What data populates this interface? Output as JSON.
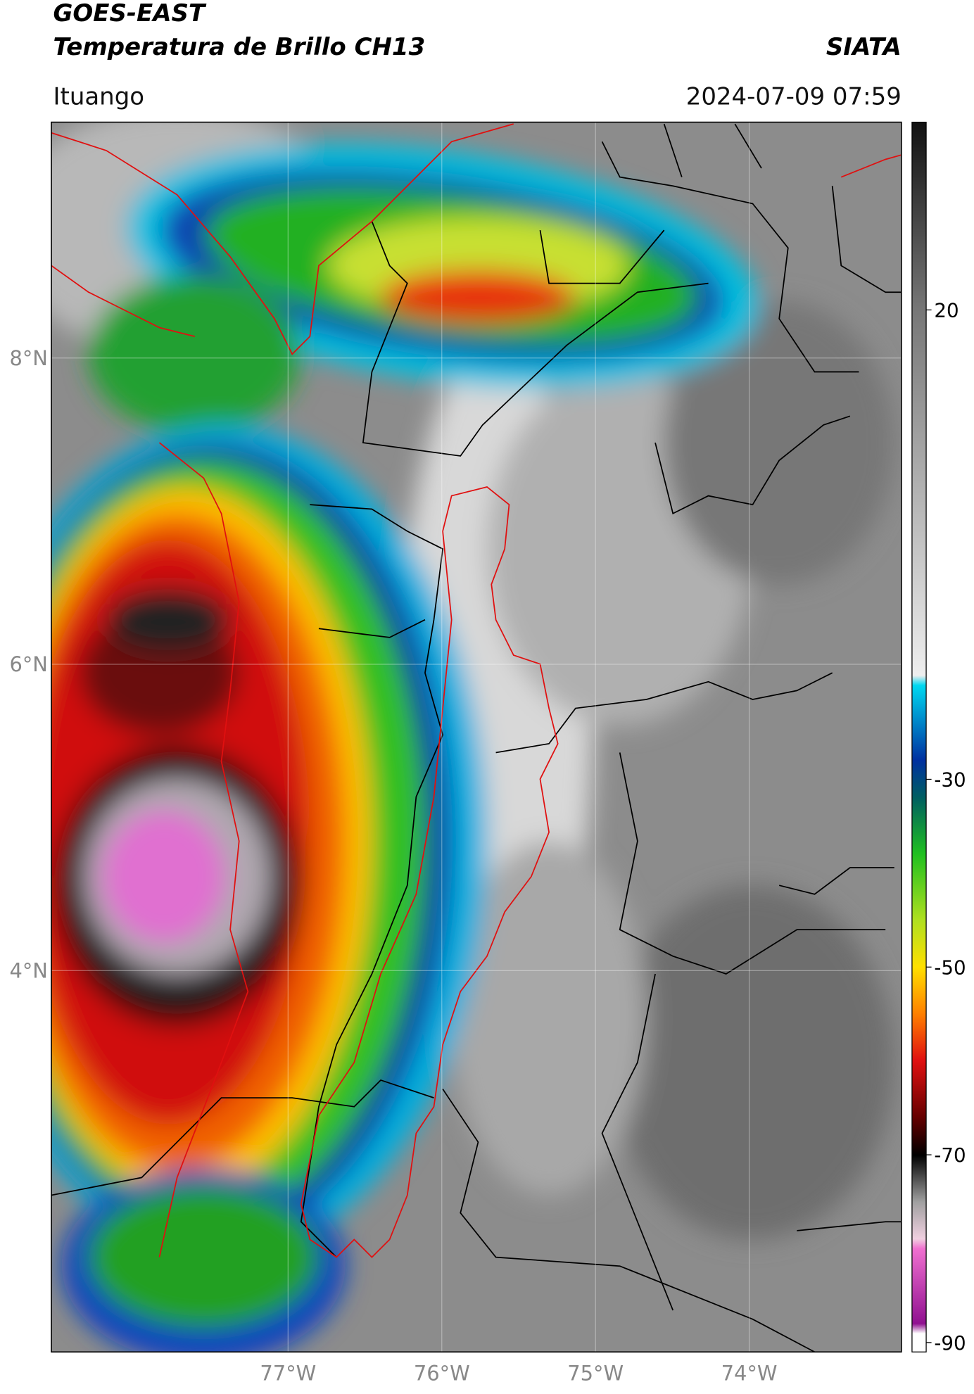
{
  "header": {
    "title": "GOES-EAST",
    "subtitle": "Temperatura de Brillo CH13",
    "agency": "SIATA",
    "location": "Ituango",
    "datetime": "2024-07-09 07:59"
  },
  "map": {
    "xlim": [
      -78.54,
      -73.01
    ],
    "ylim": [
      1.51,
      9.54
    ],
    "xticks": [
      {
        "value": -77,
        "label": "77°W"
      },
      {
        "value": -76,
        "label": "76°W"
      },
      {
        "value": -75,
        "label": "75°W"
      },
      {
        "value": -74,
        "label": "74°W"
      }
    ],
    "yticks": [
      {
        "value": 8,
        "label": "8°N"
      },
      {
        "value": 6,
        "label": "6°N"
      },
      {
        "value": 4,
        "label": "4°N"
      }
    ]
  },
  "colorbar": {
    "ylim": [
      -91,
      40
    ],
    "yticks": [
      20,
      -30,
      -50,
      -70,
      -90
    ]
  }
}
